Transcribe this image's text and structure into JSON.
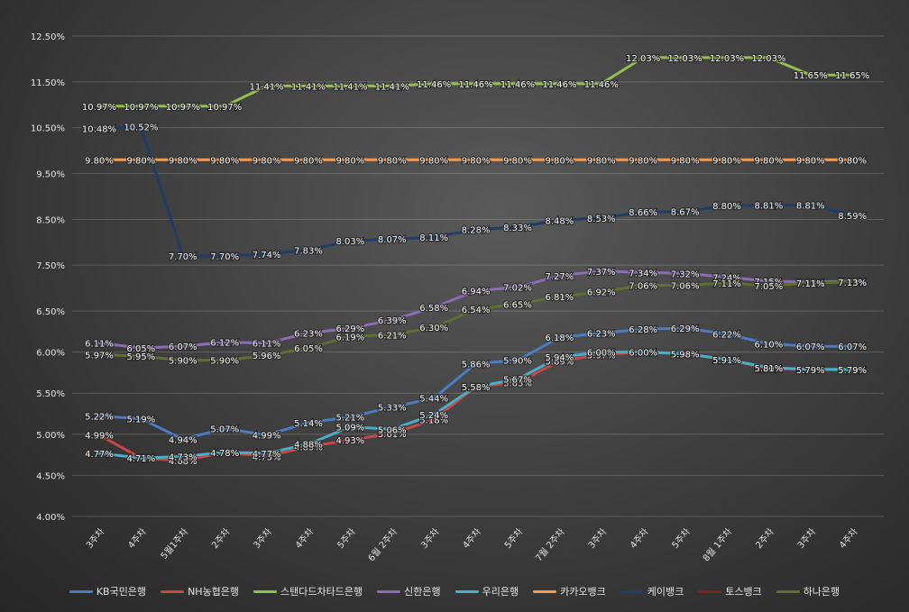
{
  "chart_data": {
    "type": "line",
    "categories": [
      "3주차",
      "4주차",
      "5월1주차",
      "2주차",
      "3주차",
      "4주차",
      "5주차",
      "6월 2주차",
      "3주차",
      "4주차",
      "5주차",
      "7월 2주차",
      "3주차",
      "4주차",
      "5주차",
      "8월 1주차",
      "2주차",
      "3주차",
      "4주차"
    ],
    "y_ticks": [
      "4.00%",
      "4.50%",
      "5.00%",
      "5.50%",
      "6.00%",
      "6.50%",
      "7.50%",
      "8.50%",
      "9.50%",
      "10.50%",
      "11.50%",
      "12.50%"
    ],
    "grid": true,
    "legend_position": "bottom",
    "series": [
      {
        "name": "KB국민은행",
        "color": "#4a7cc4",
        "values": [
          5.22,
          5.19,
          4.94,
          5.07,
          4.99,
          5.14,
          5.21,
          5.33,
          5.44,
          5.86,
          5.9,
          6.18,
          6.23,
          6.28,
          6.29,
          6.22,
          6.1,
          6.07,
          6.07
        ]
      },
      {
        "name": "NH농협은행",
        "color": "#c64848",
        "values": [
          4.99,
          4.71,
          4.68,
          4.78,
          4.73,
          4.85,
          4.93,
          5.01,
          5.18,
          5.58,
          5.63,
          5.89,
          5.97,
          6.0,
          5.98,
          5.91,
          5.8,
          5.79,
          5.78
        ]
      },
      {
        "name": "스탠다드차타드은행",
        "color": "#93bf4c",
        "values": [
          10.97,
          10.97,
          10.97,
          10.97,
          11.41,
          11.41,
          11.41,
          11.41,
          11.46,
          11.46,
          11.46,
          11.46,
          11.46,
          12.03,
          12.03,
          12.03,
          12.03,
          11.65,
          11.65
        ]
      },
      {
        "name": "신한은행",
        "color": "#8c6cb8",
        "values": [
          6.11,
          6.05,
          6.07,
          6.12,
          6.11,
          6.23,
          6.29,
          6.39,
          6.58,
          6.94,
          7.02,
          7.27,
          7.37,
          7.34,
          7.32,
          7.24,
          7.15,
          7.13,
          7.15
        ]
      },
      {
        "name": "우리은행",
        "color": "#47b0c8",
        "values": [
          4.77,
          4.71,
          4.73,
          4.78,
          4.77,
          4.88,
          5.09,
          5.06,
          5.24,
          5.58,
          5.67,
          5.94,
          6.0,
          6.0,
          5.98,
          5.91,
          5.81,
          5.79,
          5.79
        ]
      },
      {
        "name": "카카오뱅크",
        "color": "#f39a4c",
        "values": [
          9.8,
          9.8,
          9.8,
          9.8,
          9.8,
          9.8,
          9.8,
          9.8,
          9.8,
          9.8,
          9.8,
          9.8,
          9.8,
          9.8,
          9.8,
          9.8,
          9.8,
          9.8,
          9.8
        ]
      },
      {
        "name": "케이뱅크",
        "color": "#1f3d66",
        "values": [
          10.48,
          10.52,
          7.7,
          7.7,
          7.74,
          7.83,
          8.03,
          8.07,
          8.11,
          8.28,
          8.33,
          8.48,
          8.53,
          8.66,
          8.67,
          8.8,
          8.81,
          8.81,
          8.59
        ]
      },
      {
        "name": "토스뱅크",
        "color": "#7a2323",
        "values": [
          null,
          null,
          null,
          null,
          null,
          null,
          null,
          null,
          null,
          null,
          null,
          null,
          null,
          null,
          null,
          null,
          null,
          null,
          null
        ]
      },
      {
        "name": "하나은행",
        "color": "#5d7031",
        "values": [
          5.97,
          5.95,
          5.9,
          5.9,
          5.96,
          6.05,
          6.19,
          6.21,
          6.3,
          6.54,
          6.65,
          6.81,
          6.92,
          7.06,
          7.06,
          7.11,
          7.05,
          7.11,
          7.13
        ]
      }
    ]
  }
}
